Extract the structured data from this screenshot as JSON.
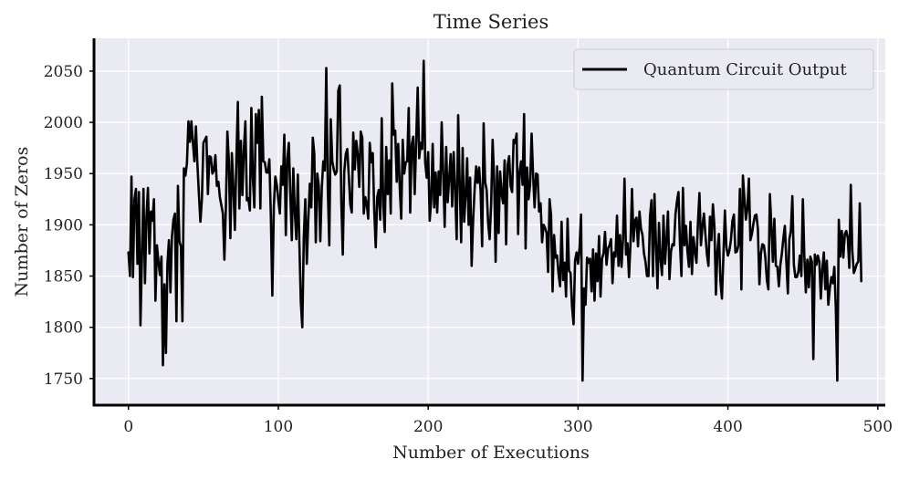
{
  "chart_data": {
    "type": "line",
    "title": "Time Series",
    "xlabel": "Number of Executions",
    "ylabel": "Number of Zeros",
    "xlim": [
      -23,
      505
    ],
    "ylim": [
      1724,
      2082
    ],
    "x_ticks": [
      0,
      100,
      200,
      300,
      400,
      500
    ],
    "y_ticks": [
      1750,
      1800,
      1850,
      1900,
      1950,
      2000,
      2050
    ],
    "grid": true,
    "legend_position": "top-right",
    "background_color": "#eaeaf2",
    "line_color": "#000000",
    "series": [
      {
        "name": "Quantum Circuit Output",
        "x_start": 0,
        "x_step": 1,
        "values": [
          1873,
          1850,
          1947,
          1849,
          1925,
          1935,
          1862,
          1932,
          1802,
          1870,
          1935,
          1843,
          1907,
          1936,
          1872,
          1913,
          1904,
          1925,
          1826,
          1880,
          1864,
          1851,
          1869,
          1763,
          1842,
          1775,
          1862,
          1885,
          1834,
          1888,
          1905,
          1911,
          1806,
          1938,
          1884,
          1879,
          1806,
          1955,
          1948,
          1960,
          2001,
          1981,
          2001,
          1980,
          1962,
          1996,
          1959,
          1930,
          1903,
          1925,
          1980,
          1983,
          1986,
          1930,
          1967,
          1966,
          1950,
          1953,
          1968,
          1938,
          1942,
          1927,
          1919,
          1911,
          1866,
          1917,
          1991,
          1962,
          1887,
          1970,
          1936,
          1895,
          1964,
          2020,
          1916,
          1982,
          1929,
          1973,
          2001,
          1924,
          1926,
          1914,
          2014,
          1946,
          1917,
          2008,
          1980,
          2012,
          1916,
          2025,
          1962,
          1961,
          1951,
          1951,
          1964,
          1909,
          1831,
          1918,
          1947,
          1939,
          1924,
          1911,
          1957,
          1939,
          1988,
          1890,
          1964,
          1980,
          1930,
          1885,
          1955,
          1913,
          1886,
          1949,
          1884,
          1825,
          1800,
          1888,
          1925,
          1862,
          1905,
          1940,
          1917,
          1985,
          1969,
          1883,
          1950,
          1938,
          1884,
          1936,
          1962,
          1953,
          2053,
          1936,
          1880,
          2003,
          1962,
          1954,
          1949,
          1952,
          2031,
          2036,
          1924,
          1871,
          1952,
          1969,
          1974,
          1948,
          1920,
          1912,
          1990,
          1954,
          1982,
          1969,
          1937,
          1991,
          1985,
          1911,
          1927,
          1920,
          1906,
          1980,
          1961,
          1970,
          1914,
          1878,
          1927,
          1934,
          1905,
          2004,
          1920,
          1893,
          1976,
          1930,
          1963,
          1911,
          2038,
          1988,
          1992,
          1942,
          1979,
          1937,
          1906,
          1983,
          1950,
          1961,
          1962,
          2014,
          1912,
          1978,
          1986,
          1930,
          1983,
          2034,
          1965,
          1980,
          1974,
          2060,
          1961,
          1946,
          1971,
          1904,
          1924,
          1979,
          1917,
          1951,
          1912,
          1952,
          1929,
          2000,
          1951,
          1898,
          1976,
          1922,
          1945,
          1969,
          1918,
          1971,
          1933,
          1886,
          2007,
          1943,
          1883,
          1975,
          1903,
          1929,
          1965,
          1900,
          1946,
          1860,
          1905,
          1935,
          1957,
          1941,
          1956,
          1932,
          1879,
          1999,
          1942,
          1934,
          1902,
          1886,
          1920,
          1983,
          1944,
          1864,
          1957,
          1892,
          1952,
          1930,
          1921,
          1963,
          1881,
          1958,
          1967,
          1938,
          1932,
          1983,
          1980,
          1989,
          1891,
          1952,
          1962,
          1939,
          2008,
          1877,
          1956,
          1925,
          1939,
          1989,
          1949,
          1917,
          1950,
          1949,
          1913,
          1921,
          1883,
          1900,
          1897,
          1892,
          1854,
          1925,
          1909,
          1835,
          1890,
          1868,
          1870,
          1852,
          1840,
          1903,
          1846,
          1863,
          1830,
          1906,
          1855,
          1853,
          1820,
          1803,
          1865,
          1873,
          1862,
          1878,
          1910,
          1748,
          1838,
          1822,
          1868,
          1863,
          1867,
          1835,
          1876,
          1826,
          1872,
          1845,
          1889,
          1830,
          1867,
          1872,
          1893,
          1861,
          1877,
          1880,
          1886,
          1843,
          1873,
          1869,
          1909,
          1860,
          1890,
          1859,
          1886,
          1945,
          1871,
          1882,
          1849,
          1882,
          1935,
          1884,
          1904,
          1907,
          1879,
          1913,
          1896,
          1890,
          1872,
          1864,
          1850,
          1850,
          1908,
          1924,
          1850,
          1930,
          1881,
          1838,
          1902,
          1867,
          1851,
          1909,
          1862,
          1886,
          1913,
          1847,
          1874,
          1881,
          1880,
          1910,
          1923,
          1932,
          1882,
          1850,
          1936,
          1880,
          1899,
          1874,
          1859,
          1903,
          1852,
          1888,
          1874,
          1863,
          1902,
          1931,
          1880,
          1899,
          1911,
          1890,
          1871,
          1860,
          1908,
          1885,
          1920,
          1898,
          1832,
          1874,
          1891,
          1845,
          1828,
          1870,
          1914,
          1878,
          1870,
          1875,
          1885,
          1904,
          1910,
          1873,
          1874,
          1880,
          1935,
          1837,
          1948,
          1926,
          1905,
          1916,
          1945,
          1885,
          1891,
          1901,
          1909,
          1910,
          1896,
          1842,
          1872,
          1881,
          1880,
          1868,
          1846,
          1837,
          1930,
          1899,
          1864,
          1906,
          1860,
          1859,
          1840,
          1861,
          1872,
          1887,
          1899,
          1864,
          1833,
          1886,
          1894,
          1928,
          1861,
          1849,
          1849,
          1854,
          1870,
          1850,
          1925,
          1869,
          1834,
          1866,
          1839,
          1869,
          1864,
          1769,
          1871,
          1861,
          1870,
          1864,
          1828,
          1857,
          1873,
          1837,
          1865,
          1822,
          1838,
          1849,
          1843,
          1859,
          1819,
          1748,
          1905,
          1869,
          1894,
          1868,
          1891,
          1894,
          1887,
          1858,
          1939,
          1875,
          1853,
          1857,
          1862,
          1864,
          1921,
          1845
        ]
      }
    ]
  },
  "legend": {
    "label": "Quantum Circuit Output"
  }
}
